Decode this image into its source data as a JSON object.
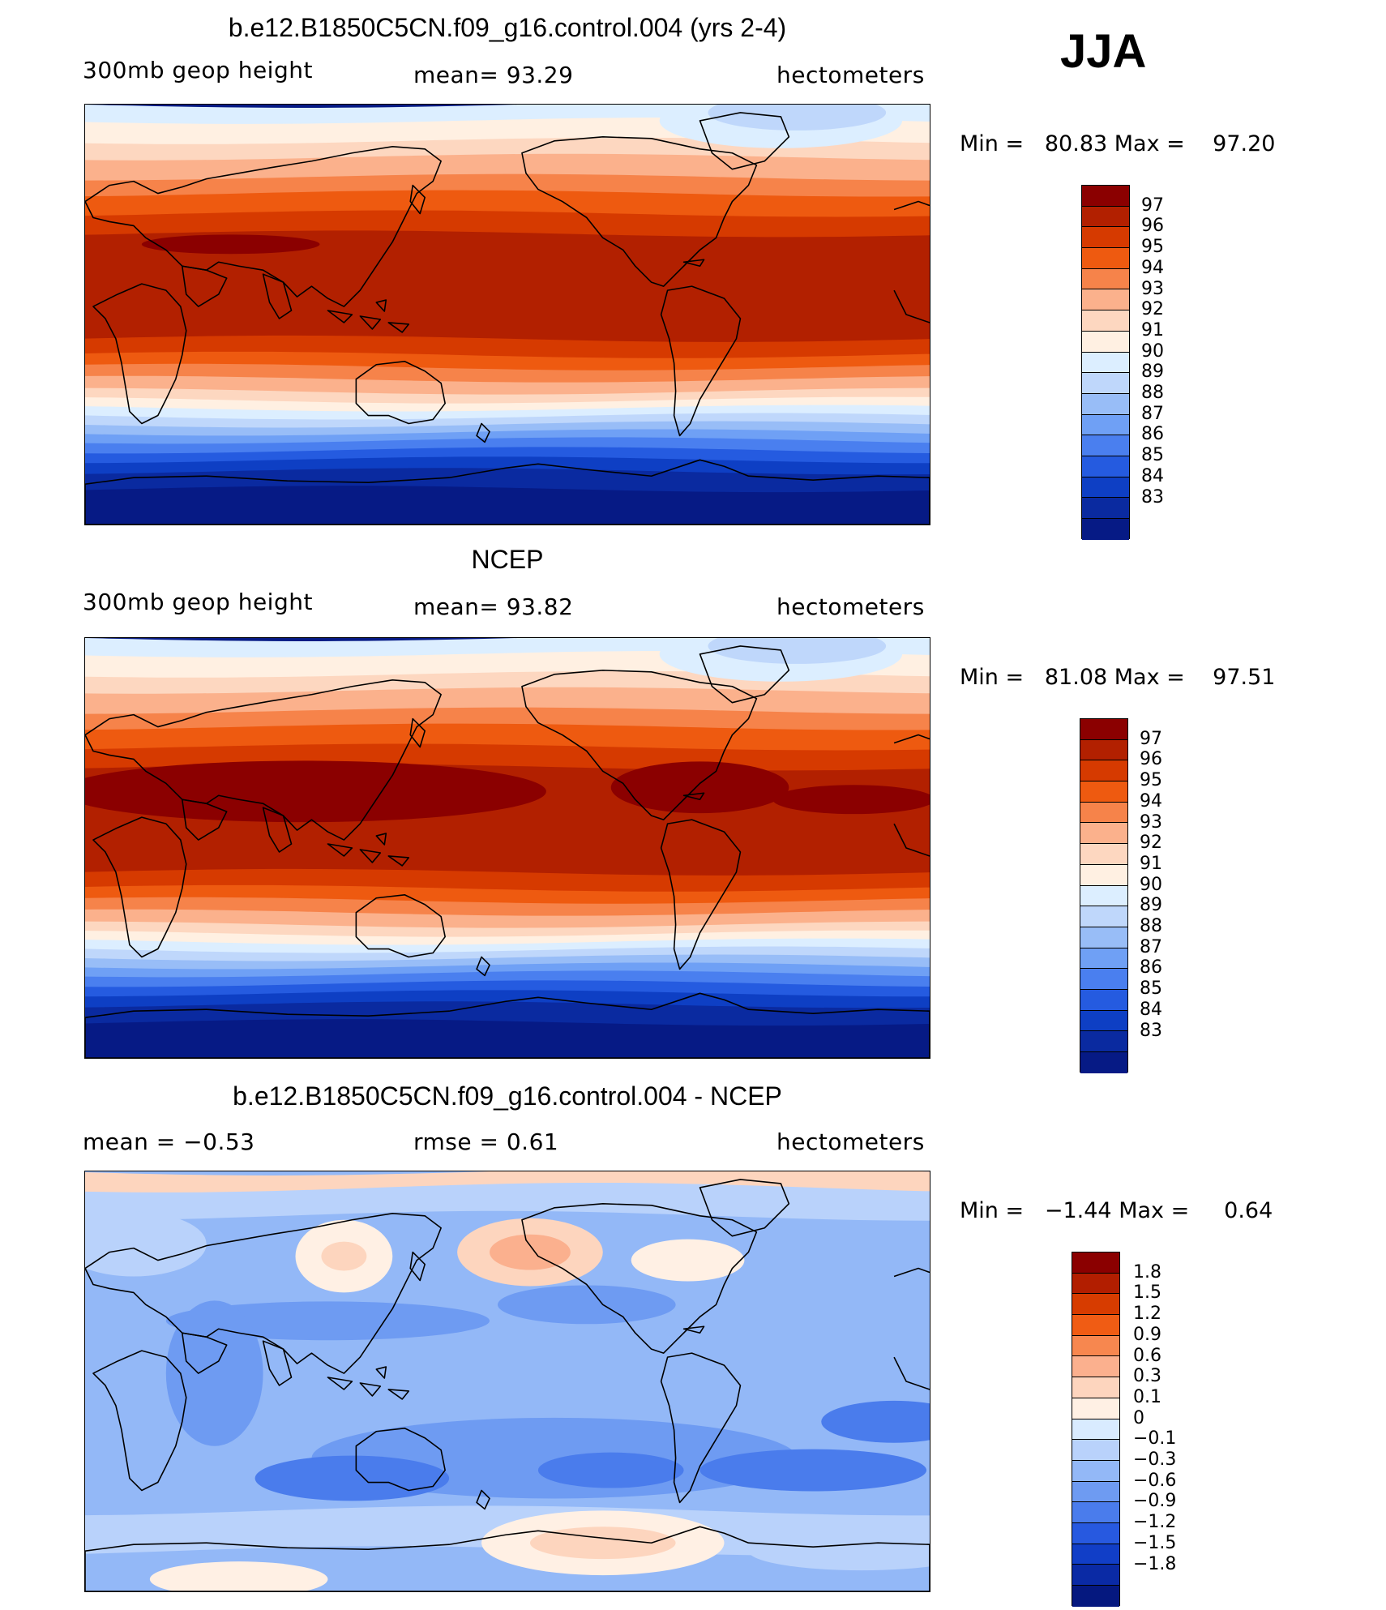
{
  "season": "JJA",
  "colors": {
    "abs": [
      "#8b0000",
      "#b22000",
      "#d63a00",
      "#ee5a10",
      "#f6834a",
      "#fbb18c",
      "#fdd7c0",
      "#fff0e2",
      "#dceeff",
      "#bfd7fb",
      "#98bdf7",
      "#6fa0f5",
      "#4a7fef",
      "#255be0",
      "#0e3fc4",
      "#0a2aa0",
      "#061a85"
    ],
    "diff": [
      "#8b0000",
      "#b21e00",
      "#d73c00",
      "#f05c14",
      "#f7874f",
      "#fbb08e",
      "#fdd5be",
      "#fff0e4",
      "#d9ebff",
      "#b9d2fb",
      "#93b8f7",
      "#6e9bf2",
      "#4a7cec",
      "#2759e0",
      "#113ec7",
      "#0a2aa5",
      "#05187f"
    ],
    "coast": "#000000"
  },
  "panels": [
    {
      "title": "b.e12.B1850C5CN.f09_g16.control.004 (yrs 2-4)",
      "left_label": "300mb  geop  height",
      "center_label": "mean=   93.29",
      "right_label": "hectometers",
      "min_label": "Min  =",
      "min_value": "80.83",
      "max_label": "Max  =",
      "max_value": "97.20",
      "legend": [
        "97",
        "96",
        "95",
        "94",
        "93",
        "92",
        "91",
        "90",
        "89",
        "88",
        "87",
        "86",
        "85",
        "84",
        "83"
      ]
    },
    {
      "title": "NCEP",
      "left_label": "300mb  geop  height",
      "center_label": "mean=   93.82",
      "right_label": "hectometers",
      "min_label": "Min  =",
      "min_value": "81.08",
      "max_label": "Max  =",
      "max_value": "97.51",
      "legend": [
        "97",
        "96",
        "95",
        "94",
        "93",
        "92",
        "91",
        "90",
        "89",
        "88",
        "87",
        "86",
        "85",
        "84",
        "83"
      ]
    },
    {
      "title": "b.e12.B1850C5CN.f09_g16.control.004 - NCEP",
      "left_label": "mean  =   −0.53",
      "center_label": "rmse  =     0.61",
      "right_label": "hectometers",
      "min_label": "Min  =",
      "min_value": "−1.44",
      "max_label": "Max  =",
      "max_value": "0.64",
      "legend": [
        "1.8",
        "1.5",
        "1.2",
        "0.9",
        "0.6",
        "0.3",
        "0.1",
        "0",
        "−0.1",
        "−0.3",
        "−0.6",
        "−0.9",
        "−1.2",
        "−1.5",
        "−1.8"
      ]
    }
  ]
}
